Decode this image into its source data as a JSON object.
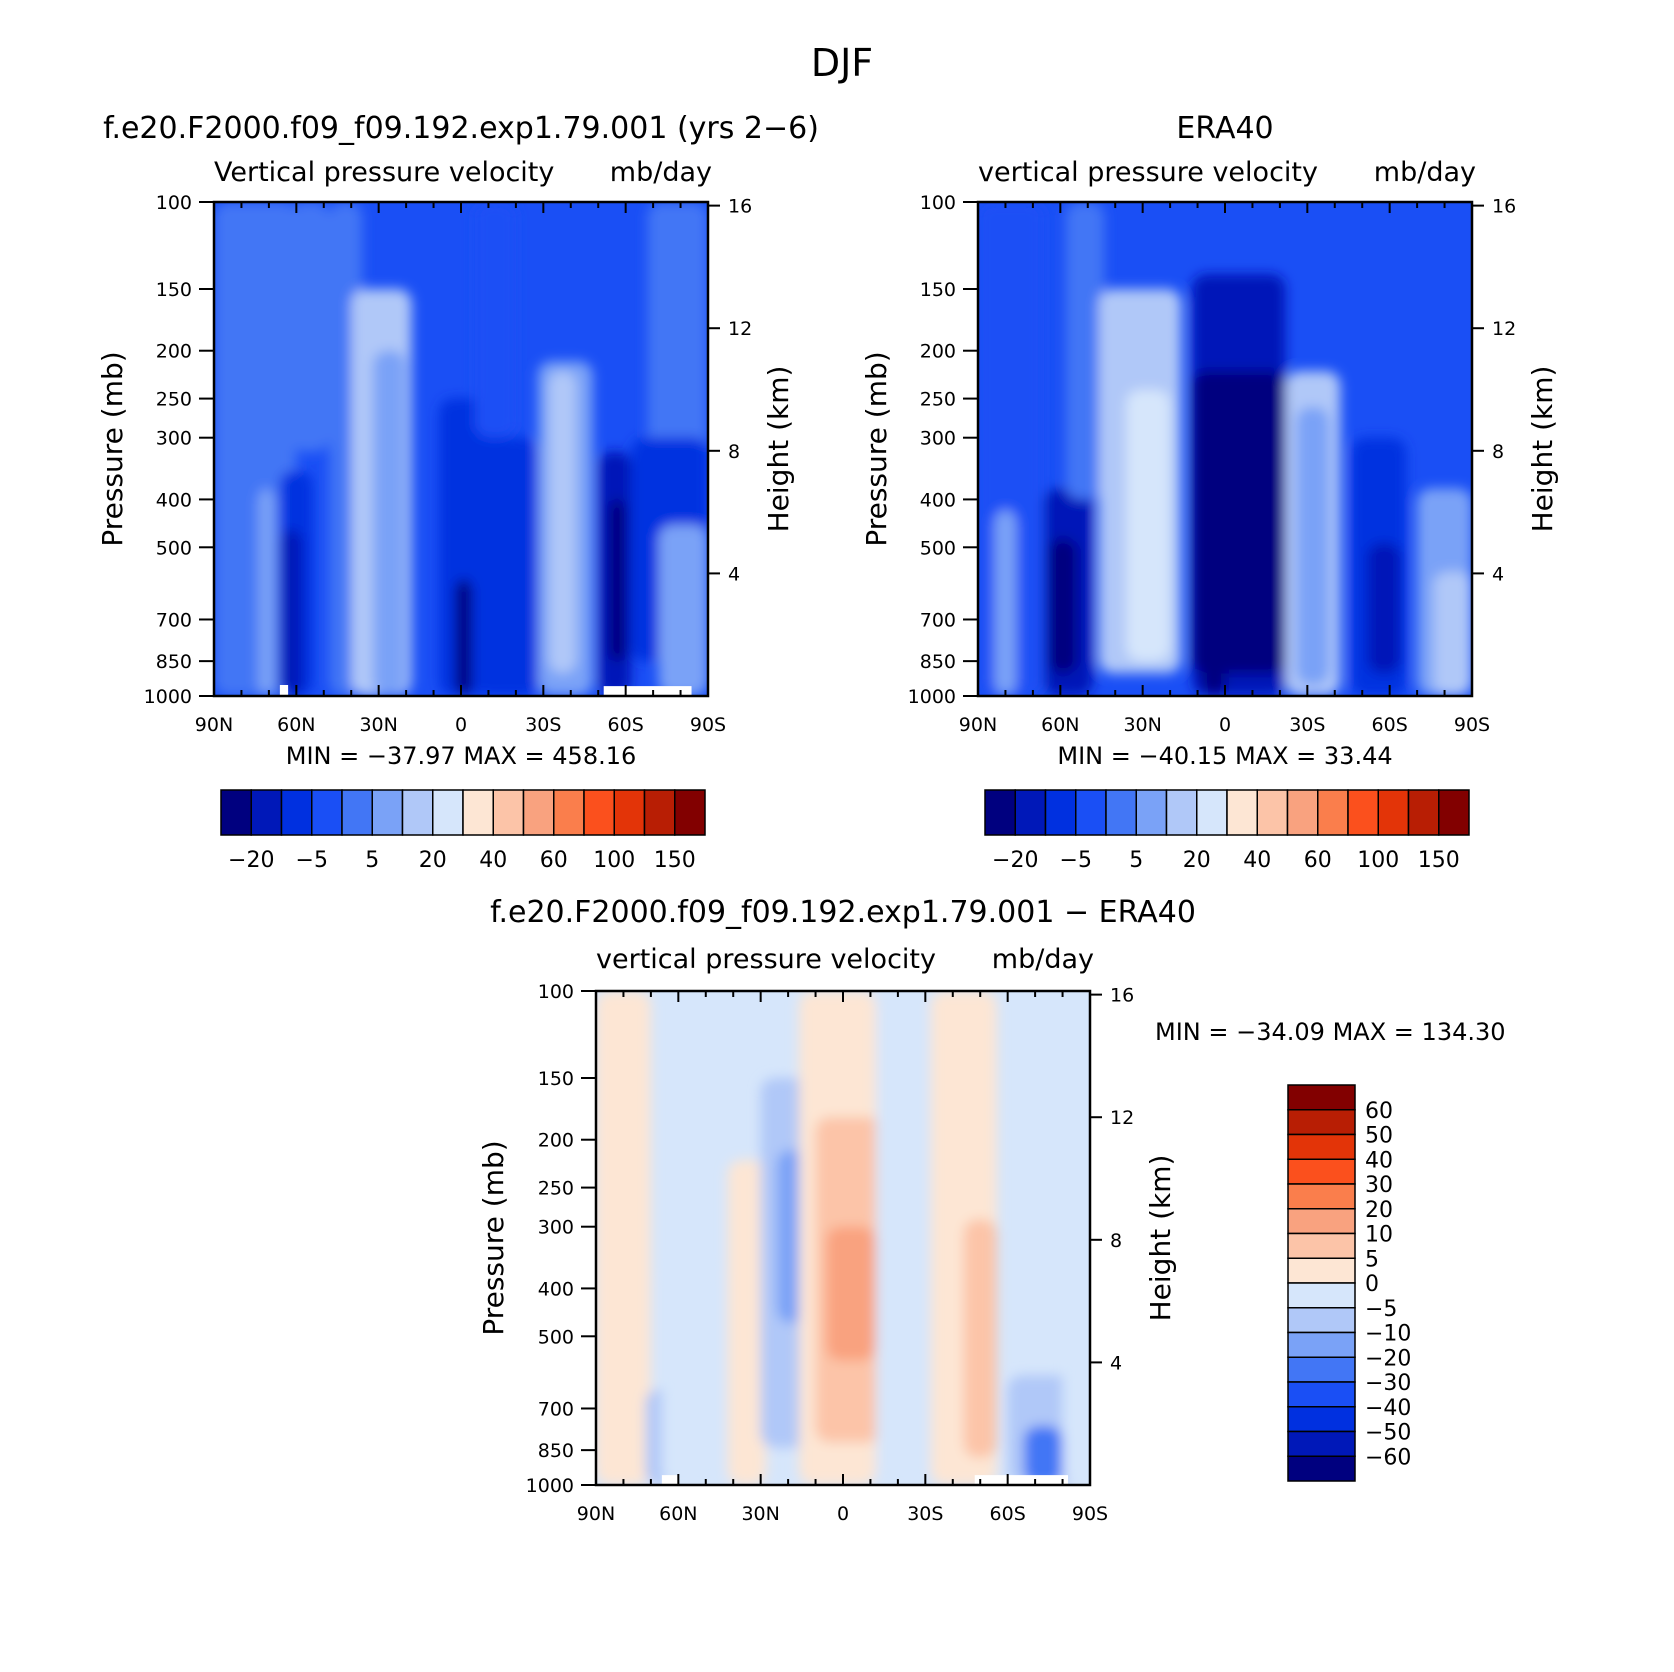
{
  "page_title": "DJF",
  "colors": {
    "model_scale": [
      "#00007f",
      "#0018b8",
      "#0030e0",
      "#1a4ff5",
      "#4276f5",
      "#7aa2f7",
      "#b0c8f8",
      "#d6e6fb",
      "#fde6d4",
      "#fcc4a8",
      "#f9a27f",
      "#fa7e4c",
      "#fb501d",
      "#e33408",
      "#b81e04",
      "#820000"
    ],
    "diff_scale": [
      "#00007f",
      "#0018b8",
      "#0030e0",
      "#1a4ff5",
      "#4276f5",
      "#7aa2f7",
      "#b0c8f8",
      "#d6e6fb",
      "#fde6d4",
      "#fcc4a8",
      "#f9a27f",
      "#fa7e4c",
      "#fb501d",
      "#e33408",
      "#b81e04",
      "#820000"
    ]
  },
  "chart_data": [
    {
      "type": "heatmap",
      "title": "f.e20.F2000.f09_f09.192.exp1.79.001 (yrs 2−6)",
      "subtitle_left": "Vertical pressure velocity",
      "subtitle_right": "mb/day",
      "ylabel": "Pressure (mb)",
      "ylabel_right": "Height (km)",
      "x_ticks": [
        "90N",
        "60N",
        "30N",
        "0",
        "30S",
        "60S",
        "90S"
      ],
      "y_ticks": [
        100,
        150,
        200,
        250,
        300,
        400,
        500,
        700,
        850,
        1000
      ],
      "y_ticks_right": [
        16,
        12,
        8,
        4
      ],
      "xlim": [
        90,
        -90
      ],
      "ylim": [
        1000,
        100
      ],
      "y_scale": "log",
      "min_label": "MIN",
      "min_value": "−37.97",
      "max_label": "MAX",
      "max_value": "458.16",
      "colorbar_labels": [
        "−20",
        "−5",
        "5",
        "20",
        "40",
        "60",
        "100",
        "150"
      ],
      "colorbar_orientation": "horizontal"
    },
    {
      "type": "heatmap",
      "title": "ERA40",
      "subtitle_left": "vertical pressure velocity",
      "subtitle_right": "mb/day",
      "ylabel": "Pressure (mb)",
      "ylabel_right": "Height (km)",
      "x_ticks": [
        "90N",
        "60N",
        "30N",
        "0",
        "30S",
        "60S",
        "90S"
      ],
      "y_ticks": [
        100,
        150,
        200,
        250,
        300,
        400,
        500,
        700,
        850,
        1000
      ],
      "y_ticks_right": [
        16,
        12,
        8,
        4
      ],
      "xlim": [
        90,
        -90
      ],
      "ylim": [
        1000,
        100
      ],
      "y_scale": "log",
      "min_label": "MIN",
      "min_value": "−40.15",
      "max_label": "MAX",
      "max_value": "33.44",
      "colorbar_labels": [
        "−20",
        "−5",
        "5",
        "20",
        "40",
        "60",
        "100",
        "150"
      ],
      "colorbar_orientation": "horizontal"
    },
    {
      "type": "heatmap",
      "title": "f.e20.F2000.f09_f09.192.exp1.79.001 − ERA40",
      "subtitle_left": "vertical pressure velocity",
      "subtitle_right": "mb/day",
      "ylabel": "Pressure (mb)",
      "ylabel_right": "Height (km)",
      "x_ticks": [
        "90N",
        "60N",
        "30N",
        "0",
        "30S",
        "60S",
        "90S"
      ],
      "y_ticks": [
        100,
        150,
        200,
        250,
        300,
        400,
        500,
        700,
        850,
        1000
      ],
      "y_ticks_right": [
        16,
        12,
        8,
        4
      ],
      "xlim": [
        90,
        -90
      ],
      "ylim": [
        1000,
        100
      ],
      "y_scale": "log",
      "min_label": "MIN",
      "min_value": "−34.09",
      "max_label": "MAX",
      "max_value": "134.30",
      "colorbar_labels": [
        "60",
        "50",
        "40",
        "30",
        "20",
        "10",
        "5",
        "0",
        "−5",
        "−10",
        "−20",
        "−30",
        "−40",
        "−50",
        "−60"
      ],
      "colorbar_orientation": "vertical"
    }
  ]
}
